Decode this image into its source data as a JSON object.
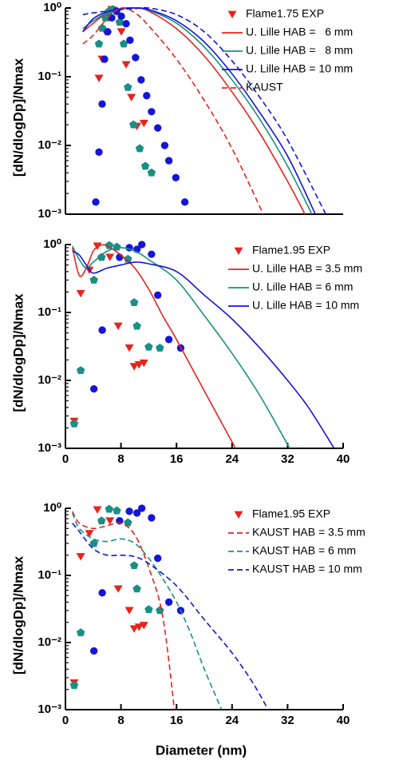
{
  "chart_data": [
    {
      "type": "line",
      "y_label": "[dN/dlogDp]/Nmax",
      "log_y": true,
      "legend": "upper right",
      "xlim": [
        0,
        40
      ],
      "ylim": [
        0.001,
        1
      ],
      "yticks": [
        {
          "value": 1,
          "label": "10⁰"
        },
        {
          "value": 0.1,
          "label": "10⁻¹"
        },
        {
          "value": 0.01,
          "label": "10⁻²"
        },
        {
          "value": 0.001,
          "label": "10⁻³"
        }
      ],
      "series": [
        {
          "name": "Flame1.75 EXP",
          "color": "#e8231c",
          "marker": "triangle",
          "x": [
            4.83,
            5.29,
            5.75,
            6.2,
            6.67,
            7.36,
            8.05,
            8.74,
            9.5,
            10.3,
            11.3
          ],
          "values": [
            0.095,
            0.18,
            0.45,
            0.72,
            0.95,
            0.87,
            0.45,
            0.15,
            0.05,
            0.019,
            0.021
          ]
        },
        {
          "name": null,
          "color": "#1a8f86",
          "marker": "pentagon",
          "x": [
            4.83,
            5.29,
            5.75,
            6.3,
            6.8,
            7.36,
            7.8,
            8.4,
            9.0,
            9.8,
            10.7,
            11.5,
            12.4
          ],
          "values": [
            0.3,
            0.51,
            0.72,
            0.9,
            0.95,
            0.9,
            0.62,
            0.3,
            0.07,
            0.02,
            0.009,
            0.005,
            0.004
          ]
        },
        {
          "name": null,
          "color": "#1515d8",
          "marker": "circle",
          "x": [
            4.37,
            4.83,
            5.29,
            5.63,
            6.09,
            6.67,
            7.36,
            8.05,
            8.74,
            9.3,
            10.1,
            10.9,
            11.7,
            12.4,
            13.3,
            14.3,
            14.9,
            15.9,
            17.2
          ],
          "values": [
            0.0015,
            0.008,
            0.04,
            0.18,
            0.45,
            0.72,
            0.9,
            0.76,
            0.59,
            0.34,
            0.19,
            0.09,
            0.053,
            0.031,
            0.018,
            0.01,
            0.006,
            0.0034,
            0.0015
          ]
        },
        {
          "name": "U. Lille HAB =   6 mm",
          "color": "#e8231c",
          "style": "solid",
          "x": [
            2.5,
            4,
            6,
            8,
            10,
            12,
            16,
            20,
            24,
            28,
            32,
            34.5
          ],
          "values": [
            0.45,
            0.6,
            0.85,
            0.98,
            1.0,
            0.9,
            0.5,
            0.2,
            0.06,
            0.015,
            0.003,
            0.001
          ]
        },
        {
          "name": "U. Lille HAB =   8 mm",
          "color": "#1a8f86",
          "style": "solid",
          "x": [
            2.5,
            4,
            6,
            8,
            10,
            12,
            16,
            20,
            24,
            28,
            32,
            35.5
          ],
          "values": [
            0.5,
            0.65,
            0.85,
            0.97,
            1.0,
            0.93,
            0.6,
            0.27,
            0.09,
            0.024,
            0.005,
            0.001
          ]
        },
        {
          "name": "U. Lille HAB = 10 mm",
          "color": "#1515d8",
          "style": "solid",
          "x": [
            2.5,
            4,
            6,
            8,
            10,
            12,
            16,
            20,
            24,
            28,
            32,
            36
          ],
          "values": [
            0.45,
            0.7,
            0.88,
            0.97,
            1.0,
            0.95,
            0.65,
            0.32,
            0.11,
            0.03,
            0.007,
            0.001
          ]
        },
        {
          "name": "KAUST",
          "color": "#e8231c",
          "style": "dashed",
          "x": [
            2.5,
            4,
            6,
            8,
            10,
            12,
            16,
            20,
            24,
            28.5
          ],
          "values": [
            0.3,
            0.4,
            0.7,
            1.0,
            0.85,
            0.55,
            0.18,
            0.045,
            0.009,
            0.001
          ]
        },
        {
          "name": null,
          "color": "#1515d8",
          "style": "dashed",
          "x": [
            2.5,
            4,
            6,
            8,
            10,
            12,
            16,
            20,
            24,
            28,
            32,
            37.5
          ],
          "values": [
            0.8,
            0.85,
            0.9,
            0.95,
            0.98,
            1.0,
            0.8,
            0.45,
            0.17,
            0.05,
            0.012,
            0.001
          ]
        }
      ]
    },
    {
      "type": "line",
      "y_label": "[dN/dlogDp]/Nmax",
      "log_y": true,
      "legend": "upper right",
      "xlim": [
        0,
        40
      ],
      "ylim": [
        0.001,
        1
      ],
      "xticks": [
        0,
        8,
        16,
        24,
        32,
        40
      ],
      "yticks": [
        {
          "value": 1,
          "label": "10⁰"
        },
        {
          "value": 0.1,
          "label": "10⁻¹"
        },
        {
          "value": 0.01,
          "label": "10⁻²"
        },
        {
          "value": 0.001,
          "label": "10⁻³"
        }
      ],
      "series": [
        {
          "name": "Flame1.95 EXP",
          "color": "#e8231c",
          "marker": "triangle",
          "x": [
            1.26,
            2.2,
            3.45,
            4.6,
            6.4,
            7.6,
            9.2,
            9.9,
            10.6,
            11.3
          ],
          "values": [
            0.0025,
            0.19,
            0.42,
            0.95,
            0.65,
            0.063,
            0.03,
            0.016,
            0.017,
            0.018
          ]
        },
        {
          "name": null,
          "color": "#1a8f86",
          "marker": "pentagon",
          "x": [
            1.26,
            2.2,
            4.1,
            5.2,
            6.3,
            7.4,
            9.0,
            9.9,
            10.3,
            12.0,
            13.6
          ],
          "values": [
            0.0023,
            0.014,
            0.3,
            0.65,
            0.97,
            0.92,
            0.61,
            0.14,
            0.063,
            0.031,
            0.03
          ]
        },
        {
          "name": null,
          "color": "#1515d8",
          "marker": "circle",
          "x": [
            4.1,
            5.3,
            7.8,
            9.2,
            10.3,
            11.0,
            12.4,
            13.3,
            14.9,
            16.6
          ],
          "values": [
            0.0075,
            0.055,
            0.65,
            0.9,
            0.85,
            1.0,
            0.72,
            0.18,
            0.04,
            0.03
          ]
        },
        {
          "name": "U. Lille HAB = 3.5 mm",
          "color": "#e8231c",
          "style": "solid",
          "x": [
            1,
            2,
            3,
            4,
            5,
            6,
            8,
            10,
            12,
            14,
            16,
            20,
            24.5
          ],
          "values": [
            0.9,
            0.35,
            0.45,
            0.8,
            0.97,
            0.95,
            0.7,
            0.45,
            0.22,
            0.09,
            0.04,
            0.007,
            0.001
          ]
        },
        {
          "name": "U. Lille HAB = 6 mm",
          "color": "#1a8f86",
          "style": "solid",
          "x": [
            1,
            2,
            3,
            4,
            6,
            8,
            10,
            12,
            16,
            20,
            24,
            28,
            32.3
          ],
          "values": [
            0.95,
            0.6,
            0.45,
            0.55,
            0.8,
            0.9,
            0.8,
            0.6,
            0.3,
            0.09,
            0.025,
            0.006,
            0.001
          ]
        },
        {
          "name": "U. Lille HAB = 10 mm",
          "color": "#1515d8",
          "style": "solid",
          "x": [
            1,
            2,
            3,
            4,
            6,
            8,
            10,
            12,
            16,
            20,
            24,
            28,
            32,
            35,
            38.7
          ],
          "values": [
            0.8,
            0.7,
            0.5,
            0.38,
            0.45,
            0.5,
            0.55,
            0.52,
            0.4,
            0.18,
            0.08,
            0.03,
            0.01,
            0.004,
            0.001
          ]
        }
      ]
    },
    {
      "type": "line",
      "y_label": "[dN/dlogDp]/Nmax",
      "x_label": "Diameter (nm)",
      "log_y": true,
      "legend": "upper right",
      "xlim": [
        0,
        40
      ],
      "ylim": [
        0.001,
        1
      ],
      "xticks": [
        0,
        8,
        16,
        24,
        32,
        40
      ],
      "yticks": [
        {
          "value": 1,
          "label": "10⁰"
        },
        {
          "value": 0.1,
          "label": "10⁻¹"
        },
        {
          "value": 0.01,
          "label": "10⁻²"
        },
        {
          "value": 0.001,
          "label": "10⁻³"
        }
      ],
      "series": [
        {
          "name": "Flame1.95 EXP",
          "color": "#e8231c",
          "marker": "triangle",
          "x": [
            1.26,
            2.2,
            3.45,
            4.6,
            6.4,
            7.6,
            9.2,
            9.9,
            10.6,
            11.3
          ],
          "values": [
            0.0025,
            0.19,
            0.42,
            0.95,
            0.65,
            0.063,
            0.03,
            0.016,
            0.017,
            0.018
          ]
        },
        {
          "name": null,
          "color": "#1a8f86",
          "marker": "pentagon",
          "x": [
            1.26,
            2.2,
            4.1,
            5.2,
            6.3,
            7.4,
            9.0,
            9.9,
            10.3,
            12.0,
            13.6
          ],
          "values": [
            0.0023,
            0.014,
            0.3,
            0.65,
            0.97,
            0.92,
            0.61,
            0.14,
            0.063,
            0.031,
            0.03
          ]
        },
        {
          "name": null,
          "color": "#1515d8",
          "marker": "circle",
          "x": [
            4.1,
            5.3,
            7.8,
            9.2,
            10.3,
            11.0,
            12.4,
            13.3,
            14.9,
            16.6
          ],
          "values": [
            0.0075,
            0.055,
            0.65,
            0.9,
            0.85,
            1.0,
            0.72,
            0.18,
            0.04,
            0.03
          ]
        },
        {
          "name": "KAUST HAB = 3.5 mm",
          "color": "#e8231c",
          "style": "dashed",
          "x": [
            1,
            2,
            4,
            6,
            8,
            10,
            12,
            14,
            15.7
          ],
          "values": [
            0.9,
            0.6,
            0.5,
            0.55,
            0.6,
            0.4,
            0.13,
            0.025,
            0.001
          ]
        },
        {
          "name": "KAUST HAB = 6 mm",
          "color": "#1a8f86",
          "style": "dashed",
          "x": [
            1,
            2,
            4,
            6,
            8,
            10,
            12,
            14,
            16,
            18,
            20,
            22.5
          ],
          "values": [
            0.85,
            0.5,
            0.35,
            0.32,
            0.35,
            0.3,
            0.18,
            0.09,
            0.04,
            0.014,
            0.004,
            0.001
          ]
        },
        {
          "name": "KAUST HAB = 10 mm",
          "color": "#1515d8",
          "style": "dashed",
          "x": [
            1,
            2,
            4,
            6,
            8,
            10,
            12,
            16,
            20,
            24,
            27,
            29.2
          ],
          "values": [
            0.6,
            0.45,
            0.25,
            0.2,
            0.2,
            0.19,
            0.15,
            0.07,
            0.022,
            0.007,
            0.0025,
            0.001
          ]
        }
      ]
    }
  ]
}
